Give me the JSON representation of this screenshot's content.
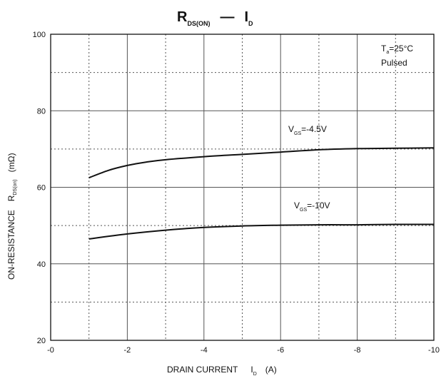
{
  "chart_data": {
    "type": "line",
    "title": {
      "main": "R",
      "sub": "DS(ON)",
      "dash": "—",
      "i": "I",
      "isub": "D"
    },
    "xlabel": {
      "main": "DRAIN CURRENT",
      "sym": "I",
      "sub": "D",
      "unit": "(A)"
    },
    "ylabel": {
      "main": "ON-RESISTANCE",
      "sym": "R",
      "sub": "DS(on)",
      "unit": "(mΩ)"
    },
    "xlim": [
      0,
      -10
    ],
    "ylim": [
      20,
      100
    ],
    "xticks": [
      0,
      -2,
      -4,
      -6,
      -8,
      -10
    ],
    "xtick_labels": [
      "-0",
      "-2",
      "-4",
      "-6",
      "-8",
      "-10"
    ],
    "yticks": [
      20,
      40,
      60,
      80,
      100
    ],
    "ytick_labels": [
      "20",
      "40",
      "60",
      "80",
      "100"
    ],
    "grid": true,
    "series": [
      {
        "name": "VGS=-4.5V",
        "label": {
          "v": "V",
          "sub": "GS",
          "value": "=-4.5V"
        },
        "x": [
          -1,
          -1.5,
          -2,
          -2.5,
          -3,
          -4,
          -5,
          -6,
          -7,
          -8,
          -9,
          -10
        ],
        "y": [
          62.5,
          64.4,
          65.7,
          66.6,
          67.2,
          68.0,
          68.6,
          69.2,
          69.8,
          70.1,
          70.2,
          70.3
        ]
      },
      {
        "name": "VGS=-10V",
        "label": {
          "v": "V",
          "sub": "GS",
          "value": "=-10V"
        },
        "x": [
          -1,
          -2,
          -3,
          -4,
          -5,
          -6,
          -7,
          -8,
          -9,
          -10
        ],
        "y": [
          46.5,
          47.8,
          48.8,
          49.5,
          49.9,
          50.1,
          50.2,
          50.2,
          50.3,
          50.3
        ]
      }
    ],
    "annotation": {
      "t": "T",
      "tsub": "a",
      "value": "=25°C",
      "line2": "Pulsed"
    },
    "colors": {
      "line": "#111111",
      "grid": "#555555",
      "frame": "#111111"
    }
  }
}
